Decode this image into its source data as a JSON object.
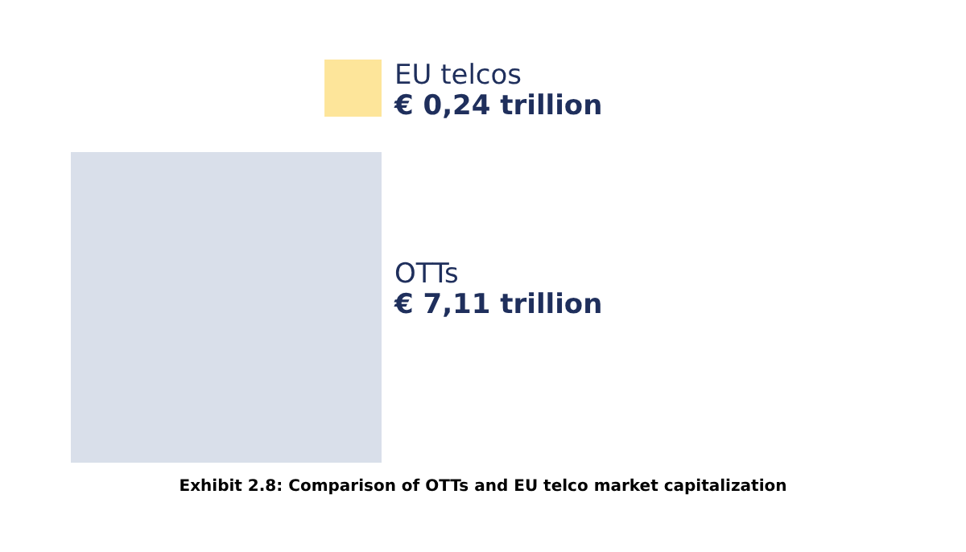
{
  "chart_data": {
    "type": "other",
    "title": "Exhibit 2.8: Comparison of OTTs and EU telco market capitalization",
    "categories": [
      "EU telcos",
      "OTTs"
    ],
    "values": [
      0.24,
      7.11
    ],
    "value_labels": [
      "€ 0,24 trillion",
      "€ 7,11 trillion"
    ],
    "colors": [
      "#fde59a",
      "#d9dfea"
    ]
  }
}
